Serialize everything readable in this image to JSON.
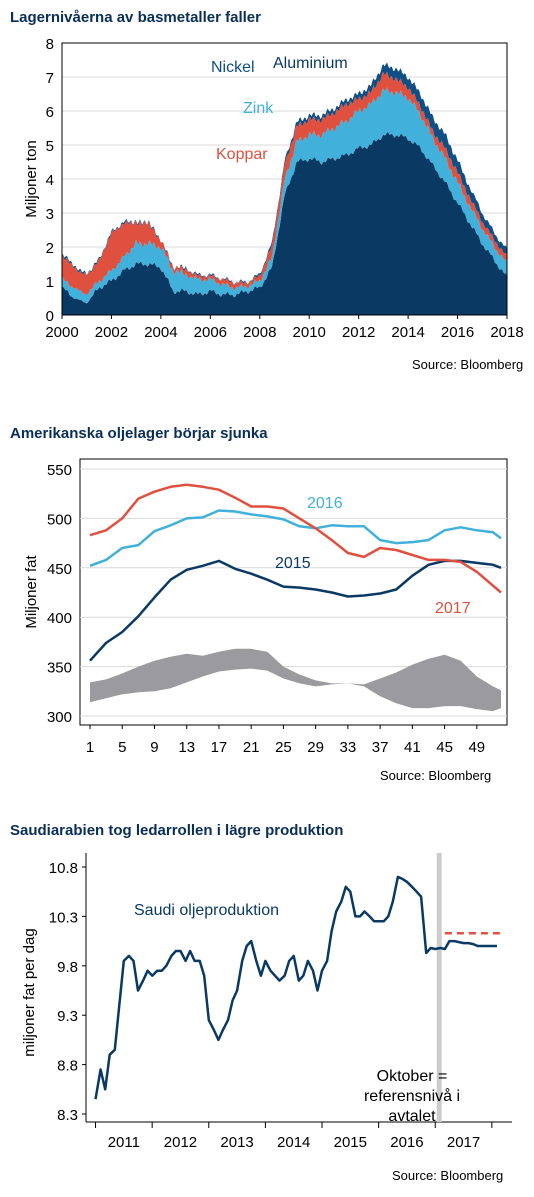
{
  "chart_data": [
    {
      "type": "area",
      "title": "Lagernivåerna av basmetaller faller",
      "ylabel": "Miljoner ton",
      "xlabel": "",
      "source": "Source: Bloomberg",
      "xlim": [
        2000,
        2018
      ],
      "ylim": [
        0,
        8
      ],
      "x_ticks": [
        "2000",
        "2002",
        "2004",
        "2006",
        "2008",
        "2010",
        "2012",
        "2014",
        "2016",
        "2018"
      ],
      "y_ticks": [
        "0",
        "1",
        "2",
        "3",
        "4",
        "5",
        "6",
        "7",
        "8"
      ],
      "colors": {
        "aluminium": "#0a3a63",
        "zink": "#41b0da",
        "koppar": "#e0503f",
        "nickel": "#0e4f86"
      },
      "x": [
        2000.0,
        2000.5,
        2001.0,
        2001.5,
        2002.0,
        2002.5,
        2003.0,
        2003.5,
        2004.0,
        2004.5,
        2005.0,
        2005.5,
        2006.0,
        2006.5,
        2007.0,
        2007.5,
        2008.0,
        2008.5,
        2009.0,
        2009.5,
        2010.0,
        2010.5,
        2011.0,
        2011.5,
        2012.0,
        2012.5,
        2013.0,
        2013.5,
        2014.0,
        2014.5,
        2015.0,
        2015.5,
        2016.0,
        2016.5,
        2017.0,
        2017.5,
        2018.0
      ],
      "series": [
        {
          "name": "Aluminium",
          "values": [
            0.8,
            0.5,
            0.35,
            0.8,
            1.0,
            1.3,
            1.5,
            1.5,
            1.4,
            0.7,
            0.7,
            0.6,
            0.7,
            0.6,
            0.6,
            0.7,
            0.8,
            1.4,
            3.5,
            4.5,
            4.6,
            4.5,
            4.6,
            4.7,
            4.9,
            5.0,
            5.3,
            5.3,
            5.2,
            4.9,
            4.4,
            3.9,
            3.3,
            2.7,
            2.1,
            1.6,
            1.1
          ]
        },
        {
          "name": "Zink",
          "values": [
            0.25,
            0.3,
            0.25,
            0.2,
            0.3,
            0.4,
            0.6,
            0.6,
            0.6,
            0.6,
            0.5,
            0.45,
            0.35,
            0.3,
            0.2,
            0.15,
            0.2,
            0.3,
            0.45,
            0.6,
            0.7,
            0.8,
            0.9,
            1.0,
            1.1,
            1.2,
            1.3,
            1.25,
            1.2,
            1.0,
            0.8,
            0.7,
            0.6,
            0.5,
            0.45,
            0.4,
            0.4
          ]
        },
        {
          "name": "Koppar",
          "values": [
            0.7,
            0.6,
            0.55,
            0.6,
            1.1,
            1.0,
            0.6,
            0.6,
            0.2,
            0.1,
            0.15,
            0.1,
            0.1,
            0.15,
            0.15,
            0.1,
            0.15,
            0.35,
            0.45,
            0.45,
            0.45,
            0.45,
            0.45,
            0.5,
            0.35,
            0.35,
            0.5,
            0.4,
            0.3,
            0.25,
            0.2,
            0.3,
            0.3,
            0.25,
            0.2,
            0.2,
            0.2
          ]
        },
        {
          "name": "Nickel",
          "values": [
            0.05,
            0.05,
            0.04,
            0.04,
            0.04,
            0.04,
            0.03,
            0.03,
            0.02,
            0.02,
            0.03,
            0.03,
            0.03,
            0.02,
            0.02,
            0.02,
            0.05,
            0.08,
            0.1,
            0.12,
            0.12,
            0.12,
            0.12,
            0.13,
            0.15,
            0.2,
            0.25,
            0.3,
            0.3,
            0.35,
            0.4,
            0.4,
            0.35,
            0.3,
            0.25,
            0.2,
            0.2
          ]
        }
      ],
      "labels": [
        {
          "text": "Nickel",
          "series": "Nickel"
        },
        {
          "text": "Aluminium",
          "series": "Aluminium"
        },
        {
          "text": "Zink",
          "series": "Zink"
        },
        {
          "text": "Koppar",
          "series": "Koppar"
        }
      ]
    },
    {
      "type": "line",
      "title": "Amerikanska oljelager börjar sjunka",
      "ylabel": "Miljoner fat",
      "xlabel": "",
      "source": "Source: Bloomberg",
      "xlim": [
        1,
        52
      ],
      "ylim": [
        300,
        550
      ],
      "x_ticks": [
        "1",
        "5",
        "9",
        "13",
        "17",
        "21",
        "25",
        "29",
        "33",
        "37",
        "41",
        "45",
        "49"
      ],
      "y_ticks": [
        "300",
        "350",
        "400",
        "450",
        "500",
        "550"
      ],
      "x": [
        1,
        3,
        5,
        7,
        9,
        11,
        13,
        15,
        17,
        19,
        21,
        23,
        25,
        27,
        29,
        31,
        33,
        35,
        37,
        39,
        41,
        43,
        45,
        47,
        49,
        51,
        52
      ],
      "series": [
        {
          "name": "2016",
          "color": "#41b0da",
          "values": [
            452,
            458,
            470,
            473,
            487,
            493,
            500,
            501,
            508,
            507,
            504,
            502,
            499,
            492,
            490,
            493,
            492,
            492,
            478,
            475,
            476,
            478,
            488,
            491,
            488,
            486,
            480
          ]
        },
        {
          "name": "2015",
          "color": "#0a3a63",
          "values": [
            356,
            374,
            385,
            401,
            420,
            438,
            448,
            452,
            457,
            449,
            444,
            438,
            431,
            430,
            428,
            425,
            421,
            422,
            424,
            428,
            442,
            453,
            457,
            457,
            455,
            453,
            450
          ]
        },
        {
          "name": "2017",
          "color": "#e0503f",
          "values": [
            483,
            488,
            500,
            520,
            527,
            532,
            534,
            532,
            529,
            521,
            512,
            512,
            510,
            500,
            490,
            478,
            465,
            461,
            470,
            468,
            463,
            458,
            458,
            456,
            446,
            432,
            425
          ]
        }
      ],
      "band": {
        "color": "#9b9b9f",
        "upper": [
          334,
          337,
          343,
          350,
          356,
          360,
          363,
          361,
          365,
          368,
          368,
          365,
          350,
          342,
          336,
          333,
          333,
          332,
          338,
          344,
          352,
          358,
          362,
          356,
          340,
          330,
          326
        ],
        "lower": [
          314,
          318,
          322,
          324,
          325,
          328,
          334,
          340,
          345,
          347,
          348,
          346,
          338,
          333,
          330,
          332,
          333,
          330,
          320,
          313,
          308,
          308,
          310,
          310,
          307,
          305,
          308
        ]
      },
      "labels": [
        {
          "text": "2016",
          "series": "2016"
        },
        {
          "text": "2015",
          "series": "2015"
        },
        {
          "text": "2017",
          "series": "2017"
        }
      ]
    },
    {
      "type": "line",
      "title": "Saudiarabien tog ledarrollen i lägre produktion",
      "ylabel": "miljoner fat per dag",
      "xlabel": "",
      "source": "Source: Bloomberg",
      "xlim": [
        2010.5,
        2017.9
      ],
      "ylim": [
        8.1,
        11.0
      ],
      "x_ticks": [
        "2011",
        "2012",
        "2013",
        "2014",
        "2015",
        "2016",
        "2017"
      ],
      "y_ticks": [
        "8.3",
        "8.8",
        "9.3",
        "9.8",
        "10.3",
        "10.8"
      ],
      "series": [
        {
          "name": "Saudi oljeproduktion",
          "color": "#0a3a63",
          "x": [
            2010.58,
            2010.67,
            2010.75,
            2010.83,
            2010.92,
            2011.0,
            2011.08,
            2011.17,
            2011.25,
            2011.33,
            2011.42,
            2011.5,
            2011.58,
            2011.67,
            2011.75,
            2011.83,
            2011.92,
            2012.0,
            2012.08,
            2012.17,
            2012.25,
            2012.33,
            2012.42,
            2012.5,
            2012.58,
            2012.67,
            2012.75,
            2012.83,
            2012.92,
            2013.0,
            2013.08,
            2013.17,
            2013.25,
            2013.33,
            2013.42,
            2013.5,
            2013.58,
            2013.67,
            2013.75,
            2013.83,
            2013.92,
            2014.0,
            2014.08,
            2014.17,
            2014.25,
            2014.33,
            2014.42,
            2014.5,
            2014.58,
            2014.67,
            2014.75,
            2014.83,
            2014.92,
            2015.0,
            2015.08,
            2015.17,
            2015.25,
            2015.33,
            2015.42,
            2015.5,
            2015.58,
            2015.67,
            2015.75,
            2015.83,
            2015.92,
            2016.0,
            2016.08,
            2016.17,
            2016.25,
            2016.33,
            2016.42,
            2016.5,
            2016.58,
            2016.67,
            2016.75,
            2016.83,
            2016.92,
            2017.0,
            2017.08,
            2017.17,
            2017.25,
            2017.33,
            2017.42,
            2017.5,
            2017.58,
            2017.67
          ],
          "values": [
            8.45,
            8.75,
            8.55,
            8.9,
            8.95,
            9.4,
            9.85,
            9.9,
            9.85,
            9.55,
            9.65,
            9.75,
            9.7,
            9.75,
            9.75,
            9.8,
            9.9,
            9.95,
            9.95,
            9.85,
            9.95,
            9.85,
            9.85,
            9.7,
            9.25,
            9.15,
            9.05,
            9.15,
            9.25,
            9.45,
            9.55,
            9.85,
            10.0,
            10.05,
            9.85,
            9.7,
            9.85,
            9.75,
            9.7,
            9.65,
            9.7,
            9.85,
            9.9,
            9.65,
            9.7,
            9.85,
            9.75,
            9.55,
            9.75,
            9.85,
            10.15,
            10.35,
            10.45,
            10.6,
            10.55,
            10.3,
            10.3,
            10.35,
            10.3,
            10.25,
            10.25,
            10.25,
            10.3,
            10.45,
            10.7,
            10.68,
            10.65,
            10.6,
            10.55,
            10.5,
            9.93,
            9.98,
            9.97,
            9.98,
            9.97,
            10.05,
            10.05,
            10.04,
            10.03,
            10.03,
            10.02,
            10.0,
            10.0,
            10.0,
            10.0,
            10.0
          ]
        },
        {
          "name": "referensnivå",
          "color": "#e0503f",
          "dashed": true,
          "x": [
            2016.75,
            2017.75
          ],
          "values": [
            10.13,
            10.13
          ]
        }
      ],
      "vline": {
        "x": 2016.65,
        "color": "#cccccc"
      },
      "labels": [
        {
          "text": "Saudi oljeproduktion"
        },
        {
          "text": "Oktober =",
          "line2": "referensnivå i",
          "line3": "avtalet"
        }
      ]
    }
  ]
}
